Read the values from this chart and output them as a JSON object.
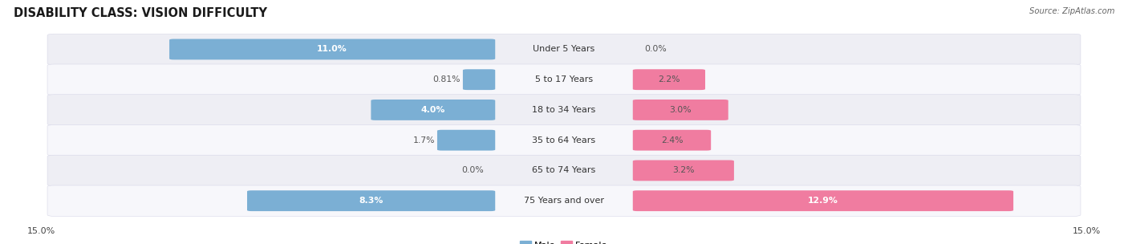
{
  "title": "DISABILITY CLASS: VISION DIFFICULTY",
  "source": "Source: ZipAtlas.com",
  "categories": [
    "Under 5 Years",
    "5 to 17 Years",
    "18 to 34 Years",
    "35 to 64 Years",
    "65 to 74 Years",
    "75 Years and over"
  ],
  "male_values": [
    11.0,
    0.81,
    4.0,
    1.7,
    0.0,
    8.3
  ],
  "female_values": [
    0.0,
    2.2,
    3.0,
    2.4,
    3.2,
    12.9
  ],
  "male_color": "#7bafd4",
  "female_color": "#f07ca0",
  "axis_max": 15.0,
  "title_fontsize": 10.5,
  "label_fontsize": 8.0,
  "value_fontsize": 7.8,
  "tick_fontsize": 8.0,
  "figure_bg": "#ffffff",
  "row_bg_colors": [
    "#eeeef4",
    "#f7f7fb"
  ],
  "row_edge_color": "#d8d8e8"
}
